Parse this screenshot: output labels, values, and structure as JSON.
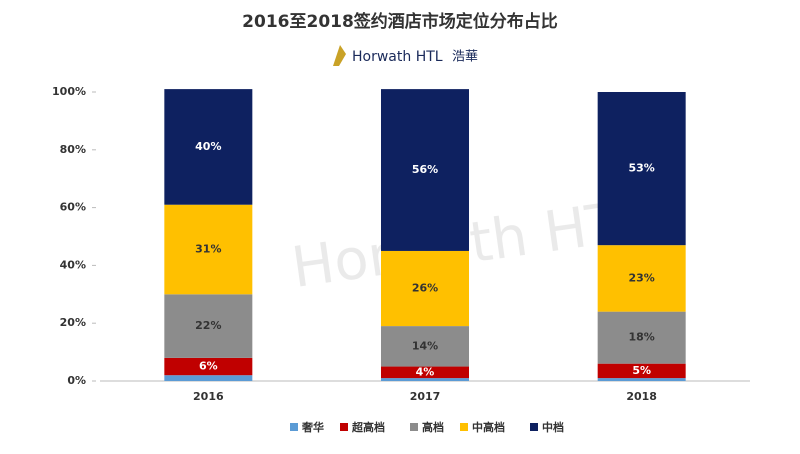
{
  "chart_data": {
    "type": "stacked_bar",
    "title": "2016至2018签约酒店市场定位分布占比",
    "logo_text": "Horwath HTL",
    "logo_cn": "浩華",
    "watermark": "Horwath HTL",
    "categories": [
      "2016",
      "2017",
      "2018"
    ],
    "series": [
      {
        "name": "奢华",
        "color": "#5b9bd5",
        "values": [
          2,
          1,
          1
        ]
      },
      {
        "name": "超高档",
        "color": "#c00000",
        "values": [
          6,
          4,
          5
        ],
        "value_labels": [
          "6%",
          "4%",
          "5%"
        ]
      },
      {
        "name": "高档",
        "color": "#8c8c8c",
        "values": [
          22,
          14,
          18
        ],
        "value_labels": [
          "22%",
          "14%",
          "18%"
        ]
      },
      {
        "name": "中高档",
        "color": "#ffc000",
        "values": [
          31,
          26,
          23
        ],
        "value_labels": [
          "31%",
          "26%",
          "23%"
        ]
      },
      {
        "name": "中档",
        "color": "#0e2160",
        "values": [
          40,
          56,
          53
        ],
        "value_labels": [
          "40%",
          "56%",
          "53%"
        ]
      }
    ],
    "ylim": [
      0,
      100
    ],
    "yticks": [
      {
        "value": 0,
        "label": "0%"
      },
      {
        "value": 20,
        "label": "20%"
      },
      {
        "value": 40,
        "label": "40%"
      },
      {
        "value": 60,
        "label": "60%"
      },
      {
        "value": 80,
        "label": "80%"
      },
      {
        "value": 100,
        "label": "100%"
      }
    ],
    "legend": "bottom"
  }
}
